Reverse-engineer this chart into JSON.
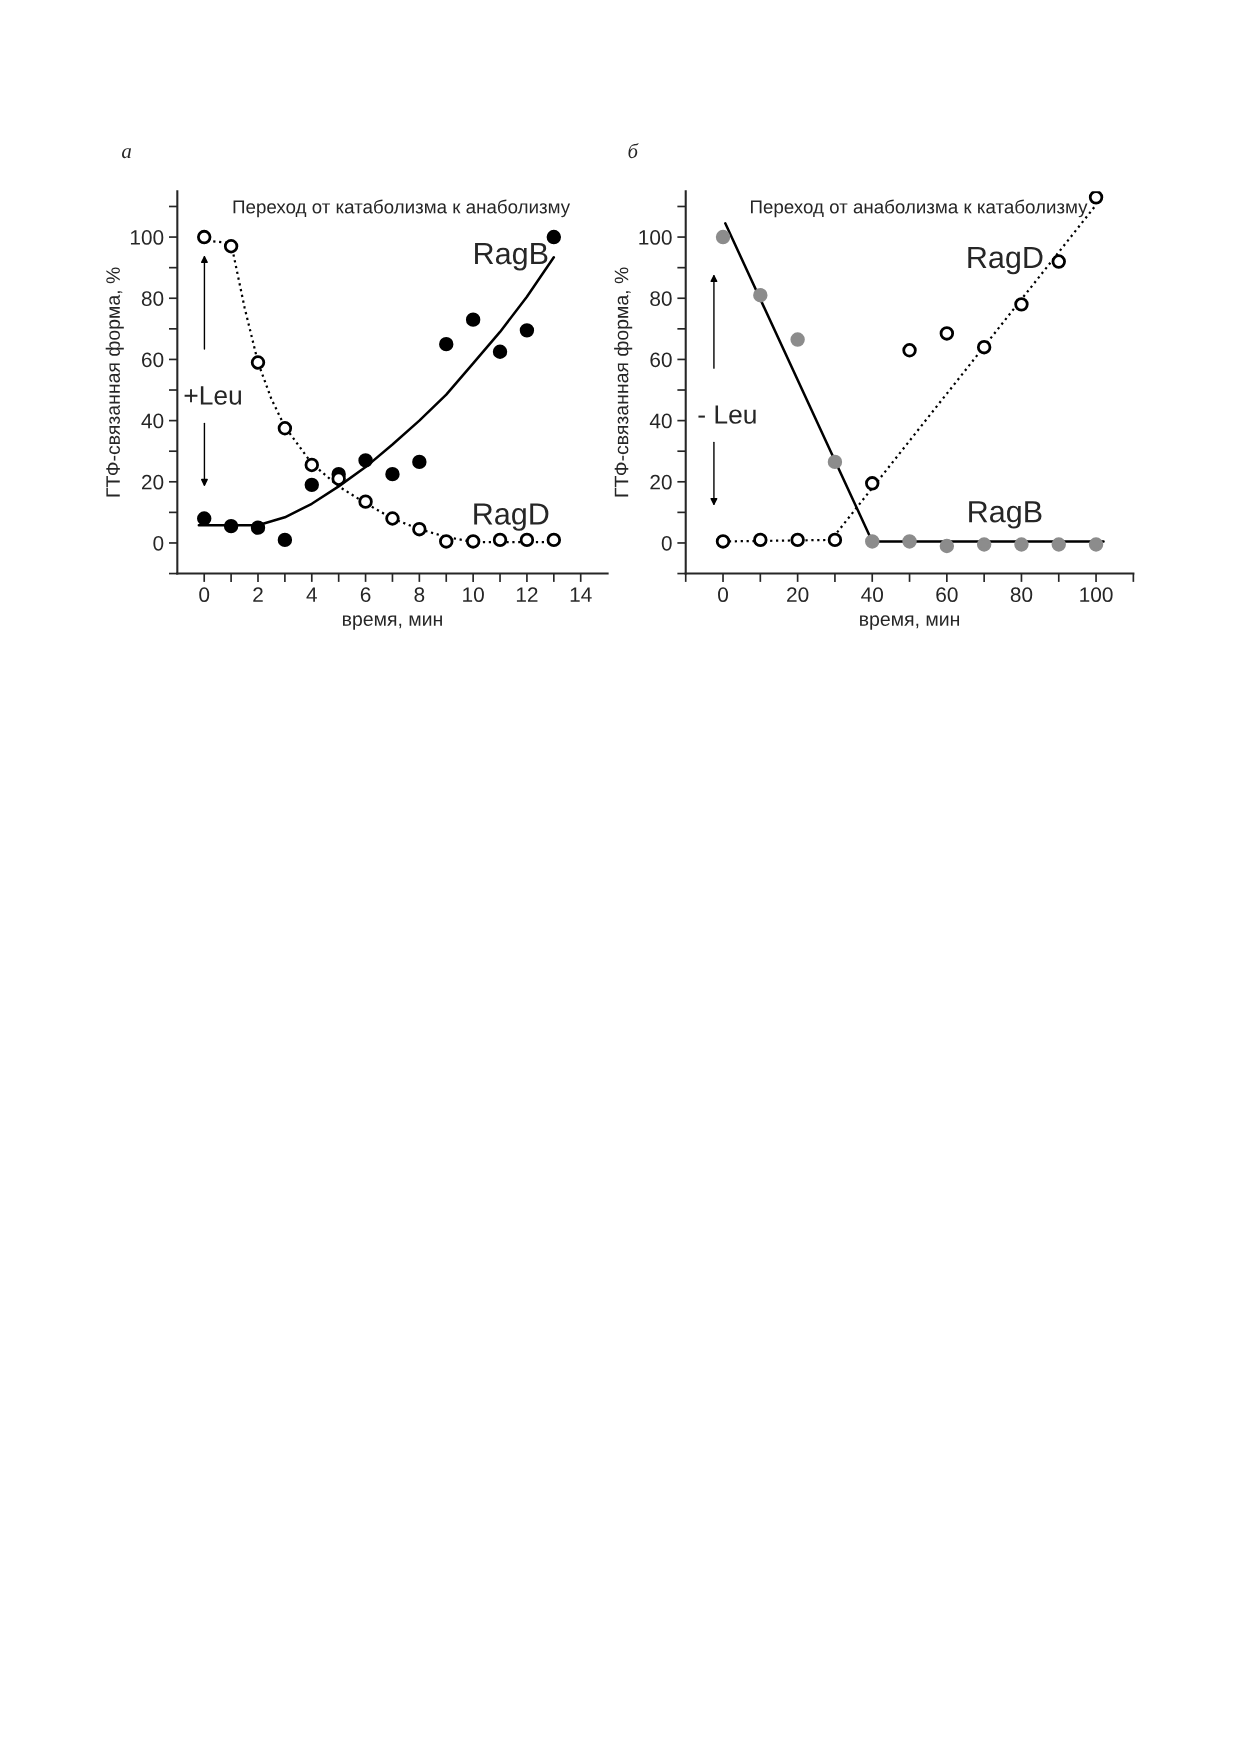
{
  "chart_data": [
    {
      "type": "scatter",
      "title": "Переход от катаболизма к анаболизму",
      "subtitle": "а",
      "xlabel": "время, мин",
      "ylabel": "ГТФ-связанная форма, %",
      "xlim": [
        -1,
        15
      ],
      "ylim": [
        -10,
        115
      ],
      "xticks": [
        0,
        {
          "value": 1,
          "label": null
        },
        2,
        {
          "value": 3,
          "label": null
        },
        4,
        {
          "value": 5,
          "label": null
        },
        6,
        {
          "value": 7,
          "label": null
        },
        8,
        {
          "value": 9,
          "label": null
        },
        10,
        {
          "value": 11,
          "label": null
        },
        12,
        {
          "value": 13,
          "label": null
        },
        14
      ],
      "yticks": [
        {
          "value": -10,
          "label": null
        },
        0,
        {
          "value": 10,
          "label": null
        },
        20,
        {
          "value": 30,
          "label": null
        },
        40,
        {
          "value": 50,
          "label": null
        },
        60,
        {
          "value": 70,
          "label": null
        },
        80,
        {
          "value": 90,
          "label": null
        },
        100,
        {
          "value": 110,
          "label": null
        }
      ],
      "grid": false,
      "legend": false,
      "series": [
        {
          "type": "line",
          "color": "#000000",
          "line_style": "solid",
          "marker": "none",
          "x": [
            -0.2,
            2,
            3,
            4,
            5,
            6,
            7,
            8,
            9,
            10,
            11,
            12,
            13
          ],
          "values": [
            5.8,
            5.8,
            8.4,
            12.8,
            18.5,
            24.8,
            32.2,
            40,
            48.5,
            58.7,
            69,
            80.5,
            93.4
          ]
        },
        {
          "type": "line",
          "color": "#000000",
          "line_style": "dotted",
          "marker": "none",
          "x": [
            -0.1,
            1,
            1.5,
            2,
            2.5,
            3,
            4,
            5,
            6,
            7,
            8,
            9,
            10,
            11,
            12,
            13
          ],
          "values": [
            99,
            98,
            77,
            59,
            47,
            38,
            26,
            18.5,
            13,
            8,
            4.5,
            2,
            0.3,
            0.3,
            0.3,
            0.3
          ]
        },
        {
          "color": "#000000",
          "marker": "circle",
          "x": [
            0,
            1,
            2,
            3,
            4,
            5,
            6,
            7,
            8,
            9,
            10,
            11,
            12,
            13
          ],
          "values": [
            8,
            5.5,
            5,
            1,
            19,
            22.5,
            27,
            22.5,
            26.5,
            65,
            73,
            62.5,
            69.5,
            100
          ]
        },
        {
          "color": "#000000",
          "marker": "circle",
          "x": [
            0,
            1,
            2,
            3,
            4,
            5,
            6,
            7,
            8,
            9,
            10,
            11,
            12,
            13
          ],
          "values": [
            100,
            97,
            59,
            37.5,
            25.5,
            21,
            13.5,
            8,
            4.5,
            0.5,
            0.5,
            1,
            1,
            1
          ]
        }
      ],
      "annotations": [
        "RagB",
        "RagD",
        "+Leu"
      ]
    },
    {
      "type": "scatter",
      "title": "Переход от анаболизма к катаболизму",
      "subtitle": "б",
      "xlabel": "время, мин",
      "ylabel": "ГТФ-связанная форма, %",
      "xlim": [
        -10,
        110
      ],
      "ylim": [
        -10,
        115
      ],
      "xticks": [
        {
          "value": -10,
          "label": null
        },
        0,
        {
          "value": 10,
          "label": null
        },
        20,
        {
          "value": 30,
          "label": null
        },
        40,
        {
          "value": 50,
          "label": null
        },
        60,
        {
          "value": 70,
          "label": null
        },
        80,
        {
          "value": 90,
          "label": null
        },
        100,
        {
          "value": 110,
          "label": null
        }
      ],
      "yticks": [
        {
          "value": -10,
          "label": null
        },
        0,
        {
          "value": 10,
          "label": null
        },
        20,
        {
          "value": 30,
          "label": null
        },
        40,
        {
          "value": 50,
          "label": null
        },
        60,
        {
          "value": 70,
          "label": null
        },
        80,
        {
          "value": 90,
          "label": null
        },
        100,
        {
          "value": 110,
          "label": null
        }
      ],
      "grid": false,
      "legend": false,
      "series": [
        {
          "type": "line",
          "color": "#000000",
          "line_style": "solid",
          "marker": "none",
          "x": [
            0.6,
            40,
            102
          ],
          "values": [
            104.5,
            0.5,
            0.5
          ]
        },
        {
          "type": "line",
          "color": "#000000",
          "line_style": "dotted",
          "marker": "none",
          "x": [
            0,
            29,
            100
          ],
          "values": [
            0.5,
            1,
            110.5
          ]
        },
        {
          "color": "#8c8c8c",
          "marker": "circle",
          "x": [
            0,
            10,
            20,
            30,
            40,
            50,
            60,
            70,
            80,
            90,
            100
          ],
          "values": [
            100,
            81,
            66.5,
            26.5,
            0.5,
            0.5,
            -1,
            -0.5,
            -0.5,
            -0.5,
            -0.5
          ]
        },
        {
          "color": "#000000",
          "marker": "circle",
          "x": [
            0,
            10,
            20,
            30,
            40,
            50,
            60,
            70,
            80,
            90,
            100
          ],
          "values": [
            0.5,
            1,
            1,
            1,
            19.5,
            63,
            68.5,
            64,
            78,
            92,
            113
          ]
        }
      ],
      "annotations": [
        "RagD",
        "RagB",
        "- Leu"
      ]
    }
  ]
}
